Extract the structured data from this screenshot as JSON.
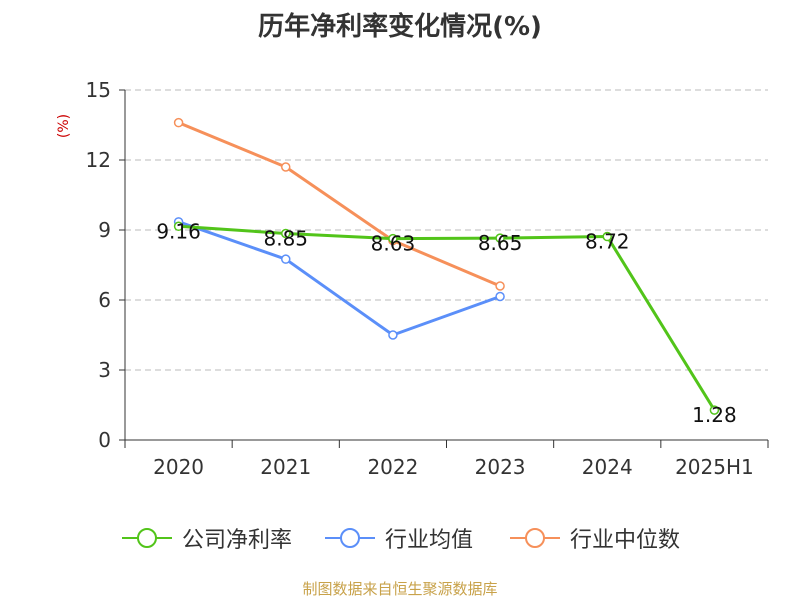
{
  "title": "历年净利率变化情况(%)",
  "source_text": "制图数据来自恒生聚源数据库",
  "chart_data": {
    "type": "line",
    "title": "历年净利率变化情况(%)",
    "ylabel": "(%)",
    "xlabel": "",
    "categories": [
      "2020",
      "2021",
      "2022",
      "2023",
      "2024",
      "2025H1"
    ],
    "ylim": [
      0,
      15
    ],
    "yticks": [
      0,
      3,
      6,
      9,
      12,
      15
    ],
    "grid": true,
    "legend_position": "bottom",
    "series": [
      {
        "name": "公司净利率",
        "color": "#52c41a",
        "values": [
          9.16,
          8.85,
          8.63,
          8.65,
          8.72,
          1.28
        ],
        "data_labels": [
          "9.16",
          "8.85",
          "8.63",
          "8.65",
          "8.72",
          "1.28"
        ]
      },
      {
        "name": "行业均值",
        "color": "#5b8ff9",
        "values": [
          9.35,
          7.75,
          4.5,
          6.15,
          null,
          null
        ]
      },
      {
        "name": "行业中位数",
        "color": "#f6905a",
        "values": [
          13.6,
          11.7,
          8.55,
          6.6,
          null,
          null
        ]
      }
    ]
  }
}
